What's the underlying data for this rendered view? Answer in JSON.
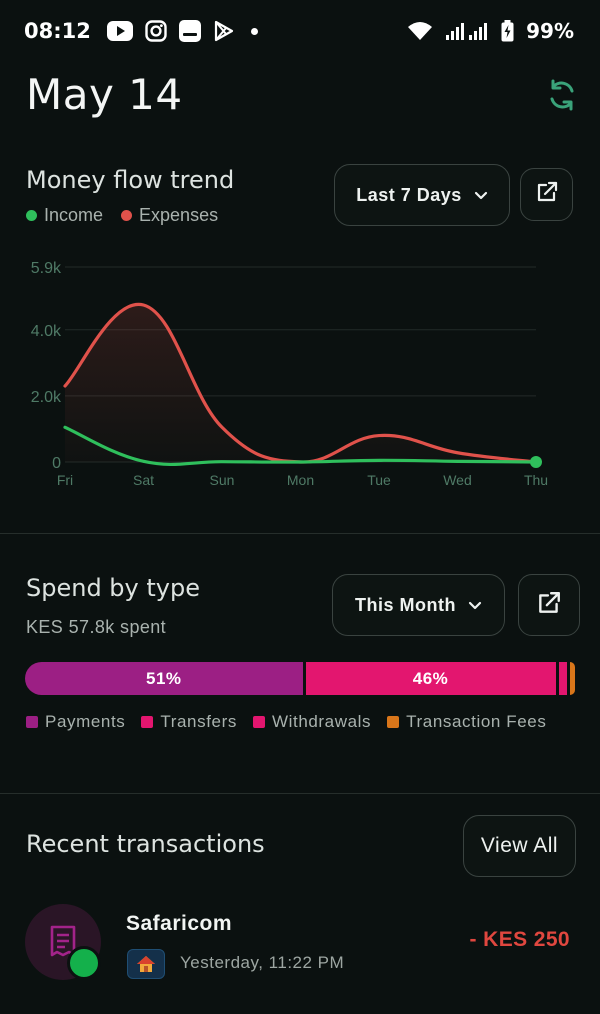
{
  "status_bar": {
    "time": "08:12",
    "battery": "99%",
    "icons": [
      "youtube-icon",
      "instagram-icon",
      "app-icon",
      "play-store-icon",
      "notification-dot-icon",
      "wifi-icon",
      "signal-icon",
      "battery-charging-icon"
    ]
  },
  "header": {
    "date": "May 14",
    "sync_icon": "sync-icon",
    "accent": "#3aa37a"
  },
  "money_flow": {
    "title": "Money flow trend",
    "legend": [
      {
        "label": "Income",
        "color": "#2fbf5c"
      },
      {
        "label": "Expenses",
        "color": "#e0524b"
      }
    ],
    "range_label": "Last 7 Days",
    "open_icon": "external-link-icon"
  },
  "chart_data": {
    "type": "line",
    "x": [
      "Fri",
      "Sat",
      "Sun",
      "Mon",
      "Tue",
      "Wed",
      "Thu"
    ],
    "y_ticks": [
      "5.9k",
      "4.0k",
      "2.0k",
      "0"
    ],
    "ylim": [
      0,
      5900
    ],
    "grid": true,
    "series": [
      {
        "name": "Expenses",
        "color": "#e0524b",
        "values": [
          2300,
          4750,
          1050,
          0,
          800,
          280,
          0
        ]
      },
      {
        "name": "Income",
        "color": "#2fbf5c",
        "values": [
          1050,
          20,
          10,
          0,
          50,
          20,
          0
        ]
      }
    ]
  },
  "spend": {
    "title": "Spend by type",
    "subtitle": "KES 57.8k spent",
    "range_label": "This Month",
    "open_icon": "external-link-icon",
    "segments": [
      {
        "name": "Payments",
        "label": "51%",
        "share": 0.51,
        "color": "#9c1f84"
      },
      {
        "name": "Transfers",
        "label": "46%",
        "share": 0.46,
        "color": "#e3166f"
      },
      {
        "name": "Withdrawals",
        "label": "",
        "share": 0.02,
        "color": "#e3166f"
      },
      {
        "name": "Transaction Fees",
        "label": "",
        "share": 0.01,
        "color": "#d9761a"
      }
    ]
  },
  "recent": {
    "title": "Recent transactions",
    "view_all": "View All",
    "items": [
      {
        "name": "Safaricom",
        "time": "Yesterday, 11:22 PM",
        "amount": "- KES 250",
        "avatar_icon": "receipt-icon",
        "category_icon": "house-icon",
        "status_color": "#14b04b"
      }
    ]
  }
}
